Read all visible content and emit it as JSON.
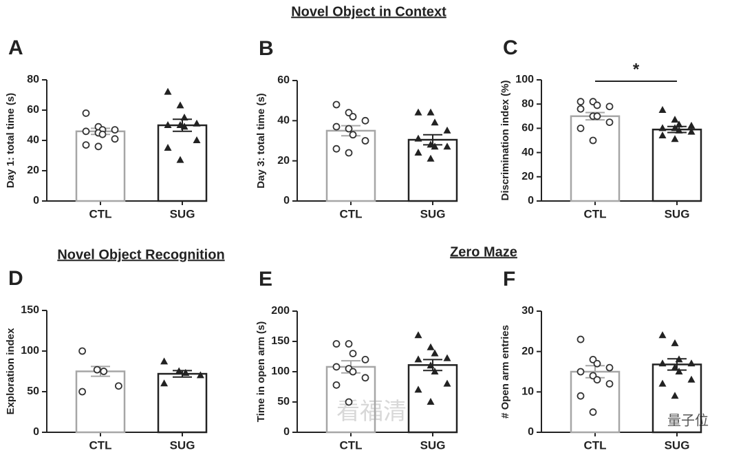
{
  "headers": [
    "Novel Object in Context",
    "Novel Object Recognition",
    "Zero Maze"
  ],
  "watermarks": [
    "看福清",
    "量子位"
  ],
  "chart_data": [
    {
      "type": "bar",
      "label": "A",
      "ylabel": "Day 1: total time (s)",
      "categories": [
        "CTL",
        "SUG"
      ],
      "values": [
        46,
        50
      ],
      "errors": [
        2,
        4
      ],
      "points": [
        [
          58,
          49,
          47,
          47,
          46,
          45,
          44,
          41,
          37,
          36
        ],
        [
          72,
          63,
          55,
          51,
          50,
          50,
          49,
          40,
          35,
          27
        ]
      ],
      "colors": [
        "#a6a6a6",
        "#222222"
      ],
      "markers": [
        "circle",
        "triangle"
      ],
      "ylim": [
        0,
        80
      ],
      "yticks": [
        0,
        20,
        40,
        60,
        80
      ]
    },
    {
      "type": "bar",
      "label": "B",
      "ylabel": "Day 3: total time (s)",
      "categories": [
        "CTL",
        "SUG"
      ],
      "values": [
        35,
        30.5
      ],
      "errors": [
        2.5,
        2.5
      ],
      "points": [
        [
          48,
          44,
          42,
          40,
          37,
          36,
          33,
          30,
          26,
          24
        ],
        [
          44,
          44,
          39,
          35,
          31,
          28,
          27,
          27,
          24,
          21
        ]
      ],
      "colors": [
        "#a6a6a6",
        "#222222"
      ],
      "markers": [
        "circle",
        "triangle"
      ],
      "ylim": [
        0,
        60
      ],
      "yticks": [
        0,
        20,
        40,
        60
      ]
    },
    {
      "type": "bar",
      "label": "C",
      "ylabel": "Discrimination index (%)",
      "categories": [
        "CTL",
        "SUG"
      ],
      "values": [
        70,
        59
      ],
      "errors": [
        3,
        2.5
      ],
      "points": [
        [
          82,
          82,
          79,
          78,
          76,
          70,
          70,
          65,
          60,
          50
        ],
        [
          75,
          67,
          63,
          62,
          60,
          60,
          58,
          57,
          54,
          51
        ]
      ],
      "colors": [
        "#a6a6a6",
        "#222222"
      ],
      "markers": [
        "circle",
        "triangle"
      ],
      "ylim": [
        0,
        100
      ],
      "yticks": [
        0,
        20,
        40,
        60,
        80,
        100
      ],
      "annotation": "*"
    },
    {
      "type": "bar",
      "label": "D",
      "ylabel": "Exploration index",
      "categories": [
        "CTL",
        "SUG"
      ],
      "values": [
        75,
        72
      ],
      "errors": [
        6,
        4
      ],
      "points": [
        [
          100,
          77,
          75,
          57,
          50
        ],
        [
          87,
          75,
          73,
          70,
          60
        ]
      ],
      "colors": [
        "#a6a6a6",
        "#222222"
      ],
      "markers": [
        "circle",
        "triangle"
      ],
      "ylim": [
        0,
        150
      ],
      "yticks": [
        0,
        50,
        100,
        150
      ]
    },
    {
      "type": "bar",
      "label": "E",
      "ylabel": "Time in open arm (s)",
      "categories": [
        "CTL",
        "SUG"
      ],
      "values": [
        108,
        111
      ],
      "errors": [
        10,
        9
      ],
      "points": [
        [
          146,
          146,
          130,
          120,
          108,
          105,
          100,
          90,
          78,
          50
        ],
        [
          160,
          140,
          130,
          122,
          120,
          110,
          100,
          80,
          70,
          50
        ]
      ],
      "colors": [
        "#a6a6a6",
        "#222222"
      ],
      "markers": [
        "circle",
        "triangle"
      ],
      "ylim": [
        0,
        200
      ],
      "yticks": [
        0,
        50,
        100,
        150,
        200
      ]
    },
    {
      "type": "bar",
      "label": "F",
      "ylabel": "# Open arm entries",
      "categories": [
        "CTL",
        "SUG"
      ],
      "values": [
        15,
        16.8
      ],
      "errors": [
        1.5,
        1.4
      ],
      "points": [
        [
          23,
          18,
          17,
          16,
          15,
          14,
          13,
          12,
          9,
          5
        ],
        [
          24,
          22,
          18,
          17,
          17,
          16,
          15,
          13,
          12,
          9
        ]
      ],
      "colors": [
        "#a6a6a6",
        "#222222"
      ],
      "markers": [
        "circle",
        "triangle"
      ],
      "ylim": [
        0,
        30
      ],
      "yticks": [
        0,
        10,
        20,
        30
      ]
    }
  ]
}
